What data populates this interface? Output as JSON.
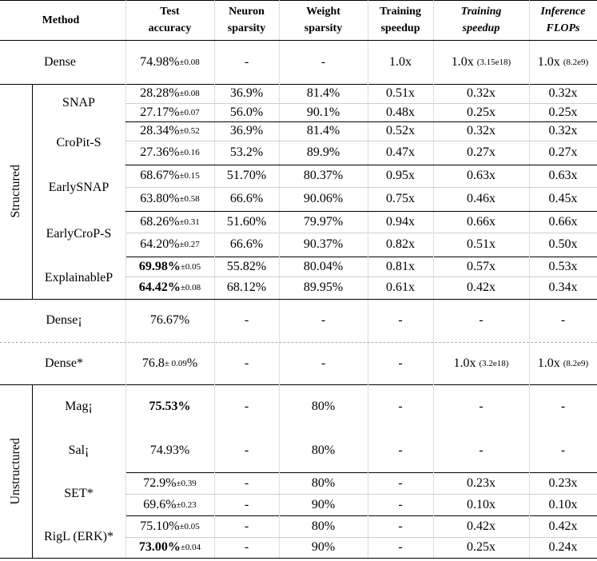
{
  "headers": {
    "method": "Method",
    "test_accuracy": [
      "Test",
      "accuracy"
    ],
    "neuron_sparsity": [
      "Neuron",
      "sparsity"
    ],
    "weight_sparsity": [
      "Weight",
      "sparsity"
    ],
    "training_speedup": [
      "Training",
      "speedup"
    ],
    "training_speedup_it": [
      "Training",
      "speedup"
    ],
    "inference_flops": [
      "Inference",
      "FLOPs"
    ]
  },
  "groups": {
    "structured": "Structured",
    "unstructured": "Unstructured"
  },
  "methods": {
    "snap": "SNAP",
    "cropit": "CroPit-S",
    "earlysnap": "EarlySNAP",
    "earlycrop": "EarlyCroP-S",
    "explainable": "ExplainableP",
    "dense_top": "Dense",
    "dense_j": "Dense¡",
    "dense_star": "Dense*",
    "mag": "Mag¡",
    "sal": "Sal¡",
    "set": "SET*",
    "rigl": "RigL (ERK)*"
  },
  "rows": [
    {
      "acc": "74.98%",
      "pm": "±0.08",
      "acc_bold": false,
      "neuron": "-",
      "weight": "-",
      "train": "1.0x",
      "tspeed": "1.0x",
      "tspeed_sm": "(3.15e18)",
      "flops": "1.0x",
      "flops_sm": "(8.2e9)"
    },
    {
      "acc": "28.28%",
      "pm": "±0.08",
      "acc_bold": false,
      "neuron": "36.9%",
      "weight": "81.4%",
      "train": "0.51x",
      "tspeed": "0.32x",
      "tspeed_sm": "",
      "flops": "0.32x",
      "flops_sm": ""
    },
    {
      "acc": "27.17%",
      "pm": "±0.07",
      "acc_bold": false,
      "neuron": "56.0%",
      "weight": "90.1%",
      "train": "0.48x",
      "tspeed": "0.25x",
      "tspeed_sm": "",
      "flops": "0.25x",
      "flops_sm": ""
    },
    {
      "acc": "28.34%",
      "pm": "±0.52",
      "acc_bold": false,
      "neuron": "36.9%",
      "weight": "81.4%",
      "train": "0.52x",
      "tspeed": "0.32x",
      "tspeed_sm": "",
      "flops": "0.32x",
      "flops_sm": ""
    },
    {
      "acc": "27.36%",
      "pm": "±0.16",
      "acc_bold": false,
      "neuron": "53.2%",
      "weight": "89.9%",
      "train": "0.47x",
      "tspeed": "0.27x",
      "tspeed_sm": "",
      "flops": "0.27x",
      "flops_sm": ""
    },
    {
      "acc": "68.67%",
      "pm": "±0.15",
      "acc_bold": false,
      "neuron": "51.70%",
      "weight": "80.37%",
      "train": "0.95x",
      "tspeed": "0.63x",
      "tspeed_sm": "",
      "flops": "0.63x",
      "flops_sm": ""
    },
    {
      "acc": "63.80%",
      "pm": "±0.58",
      "acc_bold": false,
      "neuron": "66.6%",
      "weight": "90.06%",
      "train": "0.75x",
      "tspeed": "0.46x",
      "tspeed_sm": "",
      "flops": "0.45x",
      "flops_sm": ""
    },
    {
      "acc": "68.26%",
      "pm": "±0.31",
      "acc_bold": false,
      "neuron": "51.60%",
      "weight": "79.97%",
      "train": "0.94x",
      "tspeed": "0.66x",
      "tspeed_sm": "",
      "flops": "0.66x",
      "flops_sm": ""
    },
    {
      "acc": "64.20%",
      "pm": "±0.27",
      "acc_bold": false,
      "neuron": "66.6%",
      "weight": "90.37%",
      "train": "0.82x",
      "tspeed": "0.51x",
      "tspeed_sm": "",
      "flops": "0.50x",
      "flops_sm": ""
    },
    {
      "acc": "69.98%",
      "pm": "±0.05",
      "acc_bold": true,
      "neuron": "55.82%",
      "weight": "80.04%",
      "train": "0.81x",
      "tspeed": "0.57x",
      "tspeed_sm": "",
      "flops": "0.53x",
      "flops_sm": ""
    },
    {
      "acc": "64.42%",
      "pm": "±0.08",
      "acc_bold": true,
      "neuron": "68.12%",
      "weight": "89.95%",
      "train": "0.61x",
      "tspeed": "0.42x",
      "tspeed_sm": "",
      "flops": "0.34x",
      "flops_sm": ""
    },
    {
      "acc": "76.67%",
      "pm": "",
      "acc_bold": false,
      "neuron": "-",
      "weight": "-",
      "train": "-",
      "tspeed": "-",
      "tspeed_sm": "",
      "flops": "-",
      "flops_sm": ""
    },
    {
      "acc": "76.8 ",
      "pm": "± 0.09",
      "acc_suffix": "%",
      "acc_bold": false,
      "neuron": "-",
      "weight": "-",
      "train": "-",
      "tspeed": "1.0x",
      "tspeed_sm": "(3.2e18)",
      "flops": "1.0x",
      "flops_sm": "(8.2e9)"
    },
    {
      "acc": "75.53%",
      "pm": "",
      "acc_bold": true,
      "neuron": "-",
      "weight": "80%",
      "train": "-",
      "tspeed": "-",
      "tspeed_sm": "",
      "flops": "-",
      "flops_sm": ""
    },
    {
      "acc": "74.93%",
      "pm": "",
      "acc_bold": false,
      "neuron": "-",
      "weight": "80%",
      "train": "-",
      "tspeed": "-",
      "tspeed_sm": "",
      "flops": "-",
      "flops_sm": ""
    },
    {
      "acc": "72.9%",
      "pm": "±0.39",
      "acc_bold": false,
      "neuron": "-",
      "weight": "80%",
      "train": "-",
      "tspeed": "0.23x",
      "tspeed_sm": "",
      "flops": "0.23x",
      "flops_sm": ""
    },
    {
      "acc": "69.6%",
      "pm": "±0.23",
      "acc_bold": false,
      "neuron": "-",
      "weight": "90%",
      "train": "-",
      "tspeed": "0.10x",
      "tspeed_sm": "",
      "flops": "0.10x",
      "flops_sm": ""
    },
    {
      "acc": "75.10%",
      "pm": "±0.05",
      "acc_bold": false,
      "neuron": "-",
      "weight": "80%",
      "train": "-",
      "tspeed": "0.42x",
      "tspeed_sm": "",
      "flops": "0.42x",
      "flops_sm": ""
    },
    {
      "acc": "73.00%",
      "pm": "±0.04",
      "acc_bold": true,
      "neuron": "-",
      "weight": "90%",
      "train": "-",
      "tspeed": "0.25x",
      "tspeed_sm": "",
      "flops": "0.24x",
      "flops_sm": ""
    }
  ]
}
